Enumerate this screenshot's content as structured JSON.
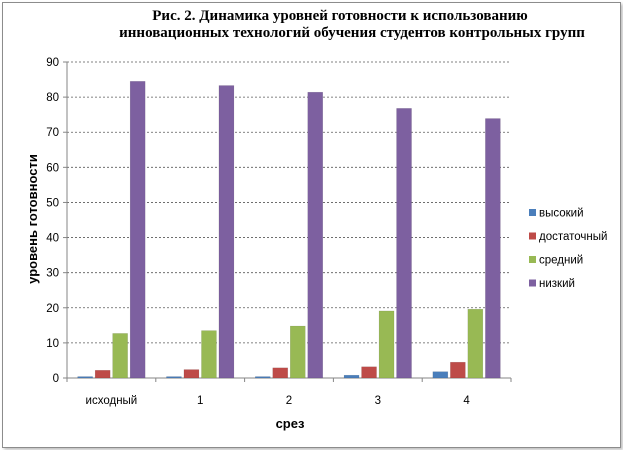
{
  "chart_data": {
    "type": "bar",
    "title_lines": [
      "Рис. 2. Динамика уровней готовности к использованию",
      "инновационных технологий обучения студентов контрольных групп"
    ],
    "xlabel": "срез",
    "ylabel": "уровень готовности",
    "categories": [
      "исходный",
      "1",
      "2",
      "3",
      "4"
    ],
    "ylim": [
      0,
      90
    ],
    "yticks": [
      0,
      10,
      20,
      30,
      40,
      50,
      60,
      70,
      80,
      90
    ],
    "grid": true,
    "legend_position": "right",
    "series": [
      {
        "name": "высокий",
        "color": "#4a7ebb",
        "values": [
          0.4,
          0.4,
          0.4,
          0.8,
          1.8
        ]
      },
      {
        "name": "достаточный",
        "color": "#be4b48",
        "values": [
          2.2,
          2.4,
          2.9,
          3.2,
          4.5
        ]
      },
      {
        "name": "средний",
        "color": "#98b954",
        "values": [
          12.7,
          13.5,
          14.8,
          19.1,
          19.6
        ]
      },
      {
        "name": "низкий",
        "color": "#7d60a0",
        "values": [
          84.5,
          83.3,
          81.4,
          76.8,
          73.9
        ]
      }
    ]
  }
}
